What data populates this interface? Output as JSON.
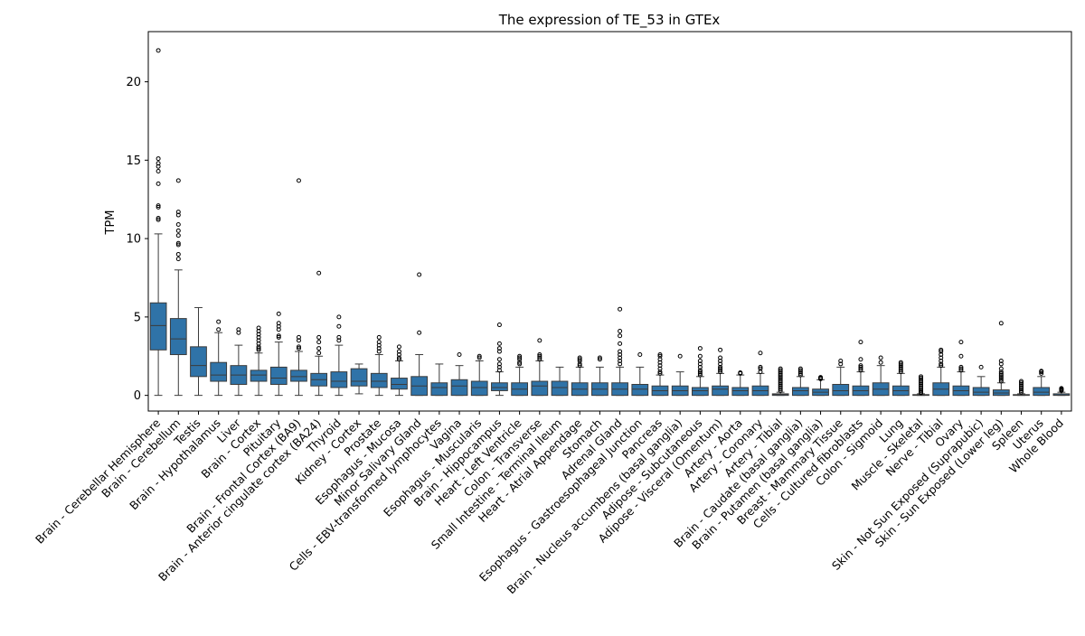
{
  "chart_data": {
    "type": "box",
    "title": "The expression of TE_53 in GTEx",
    "xlabel": "",
    "ylabel": "TPM",
    "ylim": [
      -1.0,
      23.2
    ],
    "yticks": [
      0,
      5,
      10,
      15,
      20
    ],
    "grid": false,
    "legend": "none",
    "box_color": "#2f73a8",
    "categories": [
      "Brain - Cerebellar Hemisphere",
      "Brain - Cerebellum",
      "Testis",
      "Brain - Hypothalamus",
      "Liver",
      "Brain - Cortex",
      "Pituitary",
      "Brain - Frontal Cortex (BA9)",
      "Brain - Anterior cingulate cortex (BA24)",
      "Thyroid",
      "Kidney - Cortex",
      "Prostate",
      "Esophagus - Mucosa",
      "Minor Salivary Gland",
      "Cells - EBV-transformed lymphocytes",
      "Vagina",
      "Esophagus - Muscularis",
      "Brain - Hippocampus",
      "Heart - Left Ventricle",
      "Colon - Transverse",
      "Small Intestine - Terminal Ileum",
      "Heart - Atrial Appendage",
      "Stomach",
      "Adrenal Gland",
      "Esophagus - Gastroesophageal Junction",
      "Pancreas",
      "Brain - Nucleus accumbens (basal ganglia)",
      "Adipose - Subcutaneous",
      "Adipose - Visceral (Omentum)",
      "Artery - Aorta",
      "Artery - Coronary",
      "Artery - Tibial",
      "Brain - Caudate (basal ganglia)",
      "Brain - Putamen (basal ganglia)",
      "Breast - Mammary Tissue",
      "Cells - Cultured fibroblasts",
      "Colon - Sigmoid",
      "Lung",
      "Muscle - Skeletal",
      "Nerve - Tibial",
      "Ovary",
      "Skin - Not Sun Exposed (Suprapubic)",
      "Skin - Sun Exposed (Lower leg)",
      "Spleen",
      "Uterus",
      "Whole Blood"
    ],
    "boxes": [
      {
        "q1": 2.9,
        "median": 4.45,
        "q3": 5.9,
        "whislo": 0,
        "whishi": 10.3,
        "fliers": [
          11.2,
          11.3,
          12.0,
          12.1,
          13.5,
          14.3,
          14.6,
          14.8,
          15.1,
          22.0
        ]
      },
      {
        "q1": 2.6,
        "median": 3.6,
        "q3": 4.9,
        "whislo": 0,
        "whishi": 8.0,
        "fliers": [
          8.7,
          9.0,
          9.6,
          9.7,
          10.2,
          10.5,
          10.9,
          11.5,
          11.7,
          13.7
        ]
      },
      {
        "q1": 1.2,
        "median": 1.9,
        "q3": 3.1,
        "whislo": 0,
        "whishi": 5.6,
        "fliers": []
      },
      {
        "q1": 0.9,
        "median": 1.3,
        "q3": 2.1,
        "whislo": 0,
        "whishi": 4.0,
        "fliers": [
          4.2,
          4.7
        ]
      },
      {
        "q1": 0.7,
        "median": 1.3,
        "q3": 1.9,
        "whislo": 0,
        "whishi": 3.2,
        "fliers": [
          4.0,
          4.2
        ]
      },
      {
        "q1": 0.9,
        "median": 1.3,
        "q3": 1.6,
        "whislo": 0,
        "whishi": 2.7,
        "fliers": [
          2.9,
          3.0,
          3.1,
          3.3,
          3.5,
          3.7,
          3.9,
          4.1,
          4.3
        ]
      },
      {
        "q1": 0.7,
        "median": 1.1,
        "q3": 1.8,
        "whislo": 0,
        "whishi": 3.4,
        "fliers": [
          3.7,
          3.8,
          4.2,
          4.4,
          4.6,
          5.2
        ]
      },
      {
        "q1": 0.9,
        "median": 1.2,
        "q3": 1.6,
        "whislo": 0,
        "whishi": 2.8,
        "fliers": [
          3.0,
          3.1,
          3.5,
          3.7,
          13.7
        ]
      },
      {
        "q1": 0.6,
        "median": 1.0,
        "q3": 1.4,
        "whislo": 0,
        "whishi": 2.5,
        "fliers": [
          2.7,
          3.0,
          3.4,
          3.7,
          7.8
        ]
      },
      {
        "q1": 0.5,
        "median": 0.9,
        "q3": 1.5,
        "whislo": 0,
        "whishi": 3.2,
        "fliers": [
          3.5,
          3.7,
          4.4,
          5.0
        ]
      },
      {
        "q1": 0.6,
        "median": 0.9,
        "q3": 1.7,
        "whislo": 0.1,
        "whishi": 2.0,
        "fliers": []
      },
      {
        "q1": 0.5,
        "median": 0.9,
        "q3": 1.4,
        "whislo": 0,
        "whishi": 2.6,
        "fliers": [
          2.8,
          3.0,
          3.2,
          3.4,
          3.7
        ]
      },
      {
        "q1": 0.4,
        "median": 0.7,
        "q3": 1.1,
        "whislo": 0,
        "whishi": 2.2,
        "fliers": [
          2.3,
          2.4,
          2.6,
          2.8,
          3.1
        ]
      },
      {
        "q1": 0.0,
        "median": 0.6,
        "q3": 1.2,
        "whislo": 0,
        "whishi": 2.6,
        "fliers": [
          4.0,
          7.7
        ]
      },
      {
        "q1": 0.0,
        "median": 0.5,
        "q3": 0.8,
        "whislo": 0,
        "whishi": 2.0,
        "fliers": []
      },
      {
        "q1": 0.0,
        "median": 0.6,
        "q3": 1.0,
        "whislo": 0,
        "whishi": 1.9,
        "fliers": [
          2.6
        ]
      },
      {
        "q1": 0.0,
        "median": 0.5,
        "q3": 0.9,
        "whislo": 0,
        "whishi": 2.2,
        "fliers": [
          2.4,
          2.5
        ]
      },
      {
        "q1": 0.3,
        "median": 0.5,
        "q3": 0.8,
        "whislo": 0,
        "whishi": 1.5,
        "fliers": [
          1.6,
          1.8,
          2.0,
          2.3,
          2.8,
          3.0,
          3.3,
          4.5
        ]
      },
      {
        "q1": 0.0,
        "median": 0.4,
        "q3": 0.8,
        "whislo": 0,
        "whishi": 1.8,
        "fliers": [
          2.0,
          2.1,
          2.3,
          2.4,
          2.5
        ]
      },
      {
        "q1": 0.0,
        "median": 0.6,
        "q3": 0.9,
        "whislo": 0,
        "whishi": 2.2,
        "fliers": [
          2.3,
          2.4,
          2.5,
          2.6,
          3.5
        ]
      },
      {
        "q1": 0.0,
        "median": 0.5,
        "q3": 0.9,
        "whislo": 0,
        "whishi": 1.8,
        "fliers": []
      },
      {
        "q1": 0.0,
        "median": 0.4,
        "q3": 0.8,
        "whislo": 0,
        "whishi": 1.8,
        "fliers": [
          1.9,
          2.0,
          2.2,
          2.3,
          2.4
        ]
      },
      {
        "q1": 0.0,
        "median": 0.4,
        "q3": 0.8,
        "whislo": 0,
        "whishi": 1.8,
        "fliers": [
          2.3,
          2.4
        ]
      },
      {
        "q1": 0.0,
        "median": 0.4,
        "q3": 0.8,
        "whislo": 0,
        "whishi": 1.8,
        "fliers": [
          2.0,
          2.2,
          2.4,
          2.6,
          2.8,
          3.3,
          3.8,
          4.1,
          5.5
        ]
      },
      {
        "q1": 0.0,
        "median": 0.4,
        "q3": 0.7,
        "whislo": 0,
        "whishi": 1.8,
        "fliers": [
          2.6
        ]
      },
      {
        "q1": 0.0,
        "median": 0.3,
        "q3": 0.6,
        "whislo": 0,
        "whishi": 1.3,
        "fliers": [
          1.4,
          1.5,
          1.7,
          1.9,
          2.1,
          2.3,
          2.5,
          2.6
        ]
      },
      {
        "q1": 0.0,
        "median": 0.3,
        "q3": 0.6,
        "whislo": 0,
        "whishi": 1.5,
        "fliers": [
          2.5
        ]
      },
      {
        "q1": 0.0,
        "median": 0.3,
        "q3": 0.5,
        "whislo": 0,
        "whishi": 1.2,
        "fliers": [
          1.3,
          1.4,
          1.5,
          1.6,
          1.8,
          2.0,
          2.2,
          2.5,
          3.0
        ]
      },
      {
        "q1": 0.0,
        "median": 0.4,
        "q3": 0.6,
        "whislo": 0,
        "whishi": 1.4,
        "fliers": [
          1.5,
          1.6,
          1.7,
          1.8,
          2.0,
          2.2,
          2.4,
          2.9
        ]
      },
      {
        "q1": 0.0,
        "median": 0.3,
        "q3": 0.5,
        "whislo": 0,
        "whishi": 1.3,
        "fliers": [
          1.4,
          1.45
        ]
      },
      {
        "q1": 0.0,
        "median": 0.3,
        "q3": 0.6,
        "whislo": 0,
        "whishi": 1.4,
        "fliers": [
          1.5,
          1.7,
          1.8,
          2.7
        ]
      },
      {
        "q1": 0.0,
        "median": 0.05,
        "q3": 0.1,
        "whislo": 0,
        "whishi": 0.2,
        "fliers": [
          0.3,
          0.4,
          0.5,
          0.6,
          0.7,
          0.8,
          0.9,
          1.0,
          1.1,
          1.2,
          1.3,
          1.4,
          1.5,
          1.6,
          1.7
        ]
      },
      {
        "q1": 0.0,
        "median": 0.3,
        "q3": 0.5,
        "whislo": 0,
        "whishi": 1.2,
        "fliers": [
          1.3,
          1.4,
          1.5,
          1.6,
          1.7
        ]
      },
      {
        "q1": 0.0,
        "median": 0.2,
        "q3": 0.4,
        "whislo": 0,
        "whishi": 1.0,
        "fliers": [
          1.05,
          1.1,
          1.15
        ]
      },
      {
        "q1": 0.0,
        "median": 0.3,
        "q3": 0.7,
        "whislo": 0,
        "whishi": 1.8,
        "fliers": [
          2.0,
          2.2
        ]
      },
      {
        "q1": 0.0,
        "median": 0.3,
        "q3": 0.6,
        "whislo": 0,
        "whishi": 1.5,
        "fliers": [
          1.6,
          1.7,
          1.8,
          1.9,
          2.3,
          3.4
        ]
      },
      {
        "q1": 0.0,
        "median": 0.4,
        "q3": 0.8,
        "whislo": 0,
        "whishi": 1.9,
        "fliers": [
          2.1,
          2.4
        ]
      },
      {
        "q1": 0.0,
        "median": 0.3,
        "q3": 0.6,
        "whislo": 0,
        "whishi": 1.4,
        "fliers": [
          1.5,
          1.6,
          1.7,
          1.8,
          1.9,
          2.0,
          2.1
        ]
      },
      {
        "q1": 0.0,
        "median": 0.02,
        "q3": 0.05,
        "whislo": 0,
        "whishi": 0.1,
        "fliers": [
          0.15,
          0.2,
          0.3,
          0.4,
          0.5,
          0.6,
          0.7,
          0.8,
          0.9,
          1.0,
          1.1,
          1.2
        ]
      },
      {
        "q1": 0.0,
        "median": 0.4,
        "q3": 0.8,
        "whislo": 0,
        "whishi": 1.8,
        "fliers": [
          1.9,
          2.0,
          2.2,
          2.4,
          2.6,
          2.8,
          2.9
        ]
      },
      {
        "q1": 0.0,
        "median": 0.3,
        "q3": 0.6,
        "whislo": 0,
        "whishi": 1.5,
        "fliers": [
          1.6,
          1.7,
          1.8,
          2.5,
          3.4
        ]
      },
      {
        "q1": 0.0,
        "median": 0.2,
        "q3": 0.5,
        "whislo": 0,
        "whishi": 1.2,
        "fliers": [
          1.8
        ]
      },
      {
        "q1": 0.0,
        "median": 0.15,
        "q3": 0.35,
        "whislo": 0,
        "whishi": 0.8,
        "fliers": [
          0.9,
          1.0,
          1.1,
          1.2,
          1.3,
          1.4,
          1.5,
          1.7,
          2.0,
          2.2,
          4.6
        ]
      },
      {
        "q1": 0.0,
        "median": 0.02,
        "q3": 0.05,
        "whislo": 0,
        "whishi": 0.1,
        "fliers": [
          0.2,
          0.3,
          0.4,
          0.5,
          0.6,
          0.7,
          0.8,
          0.9
        ]
      },
      {
        "q1": 0.0,
        "median": 0.2,
        "q3": 0.5,
        "whislo": 0,
        "whishi": 1.2,
        "fliers": [
          1.4,
          1.5,
          1.55
        ]
      },
      {
        "q1": 0.0,
        "median": 0.02,
        "q3": 0.1,
        "whislo": 0,
        "whishi": 0.2,
        "fliers": [
          0.3,
          0.35,
          0.4,
          0.45
        ]
      }
    ]
  }
}
